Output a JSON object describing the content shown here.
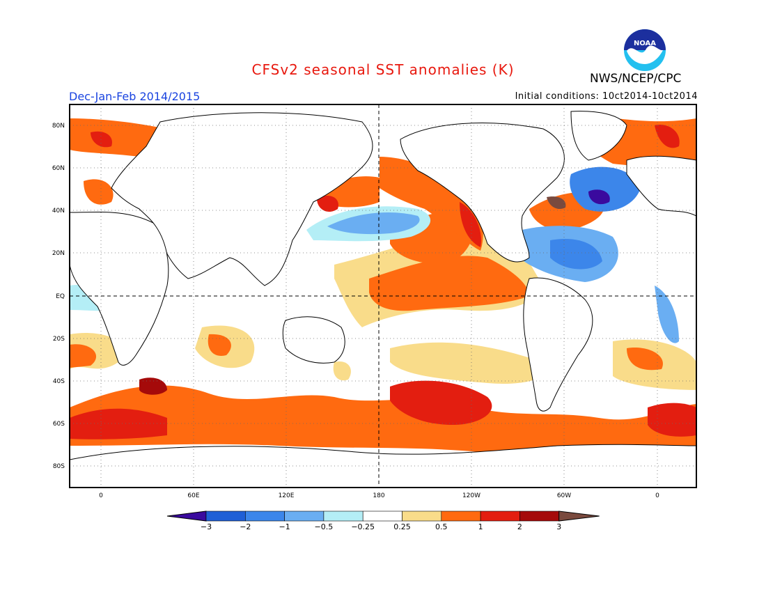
{
  "header": {
    "title": "CFSv2 seasonal SST anomalies (K)",
    "agency": "NWS/NCEP/CPC",
    "logo_text": "NOAA",
    "season": "Dec-Jan-Feb 2014/2015",
    "initial_conditions": "Initial conditions: 10ct2014-10ct2014"
  },
  "map": {
    "projection": "equirectangular",
    "lat_labels": [
      "80N",
      "60N",
      "40N",
      "20N",
      "EQ",
      "20S",
      "40S",
      "60S",
      "80S"
    ],
    "lon_labels": [
      "0",
      "60E",
      "120E",
      "180",
      "120W",
      "60W",
      "0"
    ],
    "grid": "dotted"
  },
  "colorbar": {
    "levels": [
      "-3",
      "-2",
      "-1",
      "-0.5",
      "-0.25",
      "0.25",
      "0.5",
      "1",
      "2",
      "3"
    ],
    "colors": [
      "#3a0a9e",
      "#1f5fd6",
      "#3c86ea",
      "#6aaef2",
      "#b4eef6",
      "#ffffff",
      "#f9dc8a",
      "#ff6a10",
      "#e31e10",
      "#a50a0a",
      "#7a4a3e"
    ]
  }
}
